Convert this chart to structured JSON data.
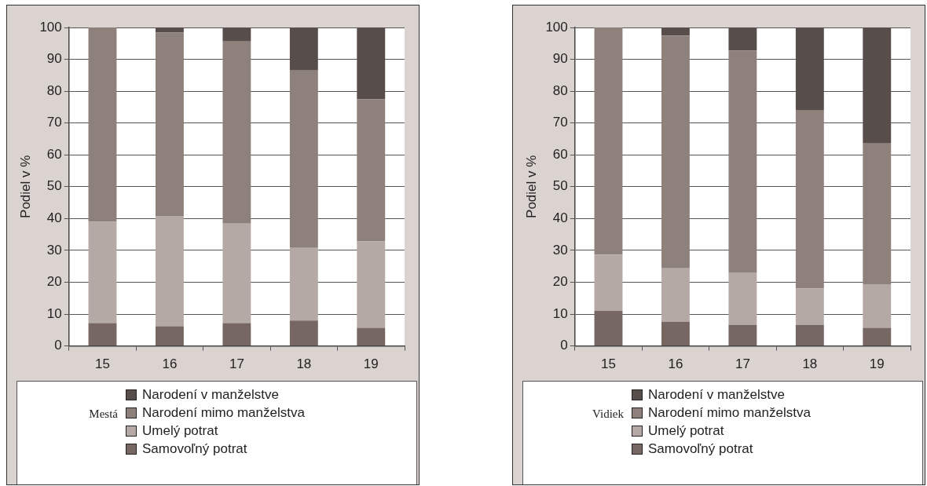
{
  "chart_data": [
    {
      "type": "bar",
      "stacked": true,
      "ylabel": "Podiel v %",
      "legend_title": "Mestá",
      "categories": [
        "15",
        "16",
        "17",
        "18",
        "19"
      ],
      "ylim": [
        0,
        100
      ],
      "yticks": [
        0,
        10,
        20,
        30,
        40,
        50,
        60,
        70,
        80,
        90,
        100
      ],
      "grid": "y",
      "legend": "bottom",
      "series": [
        {
          "name": "Samovoľný potrat",
          "color": "#766763",
          "values": [
            7.2,
            6.2,
            7.2,
            8,
            5.7
          ]
        },
        {
          "name": "Umelý potrat",
          "color": "#b4a9a5",
          "values": [
            31.8,
            34.6,
            31.2,
            22.8,
            27.1
          ]
        },
        {
          "name": "Narodení mimo manželstva",
          "color": "#8e807b",
          "values": [
            61,
            57.6,
            57.2,
            55.7,
            44.7
          ]
        },
        {
          "name": "Narodení v manželstve",
          "color": "#574d4a",
          "values": [
            0,
            1.6,
            4.4,
            13.5,
            22.5
          ]
        }
      ]
    },
    {
      "type": "bar",
      "stacked": true,
      "ylabel": "Podiel v %",
      "legend_title": "Vidiek",
      "categories": [
        "15",
        "16",
        "17",
        "18",
        "19"
      ],
      "ylim": [
        0,
        100
      ],
      "yticks": [
        0,
        10,
        20,
        30,
        40,
        50,
        60,
        70,
        80,
        90,
        100
      ],
      "grid": "y",
      "legend": "bottom",
      "series": [
        {
          "name": "Samovoľný potrat",
          "color": "#766763",
          "values": [
            11,
            7.6,
            6.6,
            6.6,
            5.7
          ]
        },
        {
          "name": "Umelý potrat",
          "color": "#b4a9a5",
          "values": [
            17.7,
            16.8,
            16.5,
            11.4,
            13.7
          ]
        },
        {
          "name": "Narodení mimo manželstva",
          "color": "#8e807b",
          "values": [
            71.3,
            73.1,
            69.6,
            55.9,
            44.2
          ]
        },
        {
          "name": "Narodení v manželstve",
          "color": "#574d4a",
          "values": [
            0,
            2.5,
            7.3,
            26.1,
            36.4
          ]
        }
      ]
    }
  ]
}
